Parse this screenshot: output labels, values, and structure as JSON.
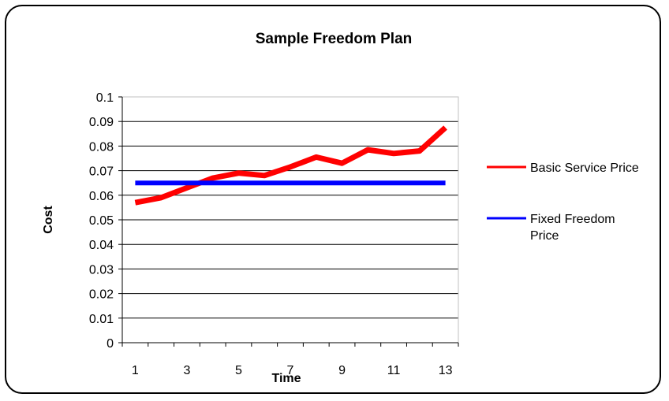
{
  "chart_data": {
    "type": "line",
    "title": "Sample Freedom Plan",
    "xlabel": "Time",
    "ylabel": "Cost",
    "x": [
      1,
      2,
      3,
      4,
      5,
      6,
      7,
      8,
      9,
      10,
      11,
      12,
      13
    ],
    "x_tick_labels": [
      "1",
      "3",
      "5",
      "7",
      "9",
      "11",
      "13"
    ],
    "y_tick_labels": [
      "0",
      "0.01",
      "0.02",
      "0.03",
      "0.04",
      "0.05",
      "0.06",
      "0.07",
      "0.08",
      "0.09",
      "0.1"
    ],
    "ylim": [
      0,
      0.1
    ],
    "grid": "horizontal",
    "legend_position": "right",
    "series": [
      {
        "name": "Basic Service Price",
        "color": "#ff0000",
        "values": [
          0.057,
          0.059,
          0.063,
          0.067,
          0.069,
          0.068,
          0.0715,
          0.0755,
          0.073,
          0.0785,
          0.077,
          0.078,
          0.0875
        ]
      },
      {
        "name": "Fixed Freedom Price",
        "legend_lines": [
          "Fixed Freedom",
          "Price"
        ],
        "color": "#0000ff",
        "values": [
          0.065,
          0.065,
          0.065,
          0.065,
          0.065,
          0.065,
          0.065,
          0.065,
          0.065,
          0.065,
          0.065,
          0.065,
          0.065
        ]
      }
    ]
  }
}
